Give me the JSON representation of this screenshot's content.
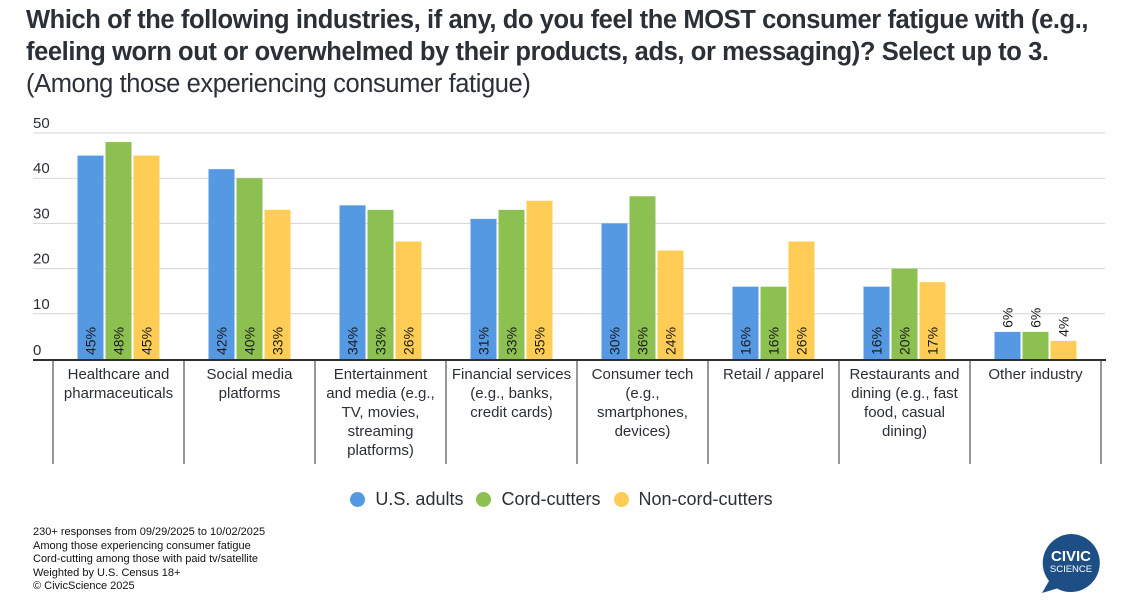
{
  "title": {
    "main": "Which of the following industries, if any, do you feel the MOST consumer fatigue with (e.g., feeling worn out or overwhelmed by their products, ads, or messaging)? Select up to 3.",
    "subtitle": "(Among those experiencing consumer fatigue)"
  },
  "chart_data": {
    "type": "bar",
    "title": "Which of the following industries, if any, do you feel the MOST consumer fatigue with (e.g., feeling worn out or overwhelmed by their products, ads, or messaging)? Select up to 3. (Among those experiencing consumer fatigue)",
    "xlabel": "",
    "ylabel": "",
    "ylim": [
      0,
      50
    ],
    "yticks": [
      0,
      10,
      20,
      30,
      40,
      50
    ],
    "grid": true,
    "legend_position": "bottom",
    "categories": [
      [
        "Healthcare and",
        "pharmaceuticals"
      ],
      [
        "Social media",
        "platforms"
      ],
      [
        "Entertainment",
        "and media (e.g.,",
        "TV, movies,",
        "streaming",
        "platforms)"
      ],
      [
        "Financial services",
        "(e.g., banks,",
        "credit cards)"
      ],
      [
        "Consumer tech",
        "(e.g.,",
        "smartphones,",
        "devices)"
      ],
      [
        "Retail / apparel"
      ],
      [
        "Restaurants and",
        "dining (e.g., fast",
        "food, casual",
        "dining)"
      ],
      [
        "Other industry"
      ]
    ],
    "series": [
      {
        "name": "U.S. adults",
        "color": "#5599e3",
        "values": [
          45,
          42,
          34,
          31,
          30,
          16,
          16,
          6
        ]
      },
      {
        "name": "Cord-cutters",
        "color": "#8cc152",
        "values": [
          48,
          40,
          33,
          33,
          36,
          16,
          20,
          6
        ]
      },
      {
        "name": "Non-cord-cutters",
        "color": "#ffcc55",
        "values": [
          45,
          33,
          26,
          35,
          24,
          26,
          17,
          4
        ]
      }
    ],
    "value_label_suffix": "%"
  },
  "footer": {
    "lines": [
      "230+ responses from 09/29/2025 to 10/02/2025",
      "Among those experiencing consumer fatigue",
      "Cord-cutting among those with paid tv/satellite",
      "Weighted by U.S. Census 18+",
      "© CivicScience 2025"
    ]
  },
  "logo": {
    "line1": "CIVIC",
    "line2": "SCIENCE",
    "color": "#1d4f86"
  }
}
